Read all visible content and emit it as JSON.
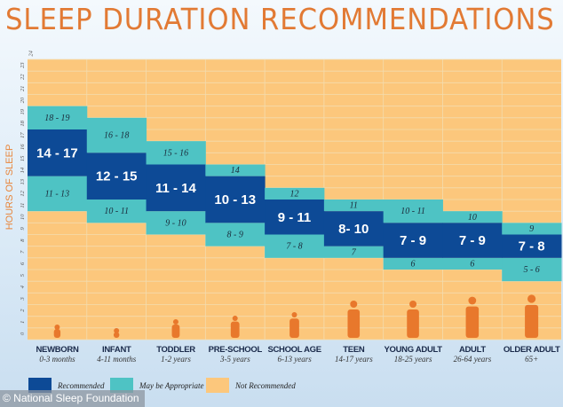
{
  "title": "SLEEP DURATION RECOMMENDATIONS",
  "credit": "© National Sleep Foundation",
  "colors": {
    "recommended": "#0d4a96",
    "may_be_appropriate": "#4ec3c4",
    "not_recommended": "#fcc77c",
    "title": "#e27a34"
  },
  "chart_data": {
    "type": "bar",
    "title": "SLEEP DURATION RECOMMENDATIONS",
    "ylabel": "HOURS OF SLEEP",
    "ylim": [
      0,
      24
    ],
    "yticks": [
      "0",
      "1",
      "2",
      "3",
      "4",
      "5",
      "6",
      "7",
      "8",
      "9",
      "10",
      "11",
      "12",
      "13",
      "14",
      "15",
      "16",
      "17",
      "18",
      "19",
      "20",
      "21",
      "22",
      "23",
      "24"
    ],
    "grid": true,
    "legend": {
      "position": "bottom-left",
      "entries": [
        "Recommended",
        "May be Appropriate",
        "Not Recommended"
      ]
    },
    "categories": [
      {
        "name": "NEWBORN",
        "age": "0-3 months",
        "low": [
          11,
          13
        ],
        "low_label": "11 - 13",
        "rec": [
          14,
          17
        ],
        "rec_label": "14 - 17",
        "high": [
          18,
          19
        ],
        "high_label": "18 - 19"
      },
      {
        "name": "INFANT",
        "age": "4-11 months",
        "low": [
          10,
          11
        ],
        "low_label": "10 - 11",
        "rec": [
          12,
          15
        ],
        "rec_label": "12 - 15",
        "high": [
          16,
          18
        ],
        "high_label": "16 - 18"
      },
      {
        "name": "TODDLER",
        "age": "1-2 years",
        "low": [
          9,
          10
        ],
        "low_label": "9 - 10",
        "rec": [
          11,
          14
        ],
        "rec_label": "11 - 14",
        "high": [
          15,
          16
        ],
        "high_label": "15 - 16"
      },
      {
        "name": "PRE-SCHOOL",
        "age": "3-5 years",
        "low": [
          8,
          9
        ],
        "low_label": "8 - 9",
        "rec": [
          10,
          13
        ],
        "rec_label": "10 - 13",
        "high": [
          14,
          14
        ],
        "high_label": "14"
      },
      {
        "name": "SCHOOL AGE",
        "age": "6-13 years",
        "low": [
          7,
          8
        ],
        "low_label": "7 - 8",
        "rec": [
          9,
          11
        ],
        "rec_label": "9 - 11",
        "high": [
          12,
          12
        ],
        "high_label": "12"
      },
      {
        "name": "TEEN",
        "age": "14-17 years",
        "low": [
          7,
          7
        ],
        "low_label": "7",
        "rec": [
          8,
          10
        ],
        "rec_label": "8- 10",
        "high": [
          11,
          11
        ],
        "high_label": "11"
      },
      {
        "name": "YOUNG ADULT",
        "age": "18-25 years",
        "low": [
          6,
          6
        ],
        "low_label": "6",
        "rec": [
          7,
          9
        ],
        "rec_label": "7 - 9",
        "high": [
          10,
          11
        ],
        "high_label": "10 - 11"
      },
      {
        "name": "ADULT",
        "age": "26-64 years",
        "low": [
          6,
          6
        ],
        "low_label": "6",
        "rec": [
          7,
          9
        ],
        "rec_label": "7 - 9",
        "high": [
          10,
          10
        ],
        "high_label": "10"
      },
      {
        "name": "OLDER ADULT",
        "age": "65+",
        "low": [
          5,
          6
        ],
        "low_label": "5 - 6",
        "rec": [
          7,
          8
        ],
        "rec_label": "7 - 8",
        "high": [
          9,
          9
        ],
        "high_label": "9"
      }
    ]
  }
}
